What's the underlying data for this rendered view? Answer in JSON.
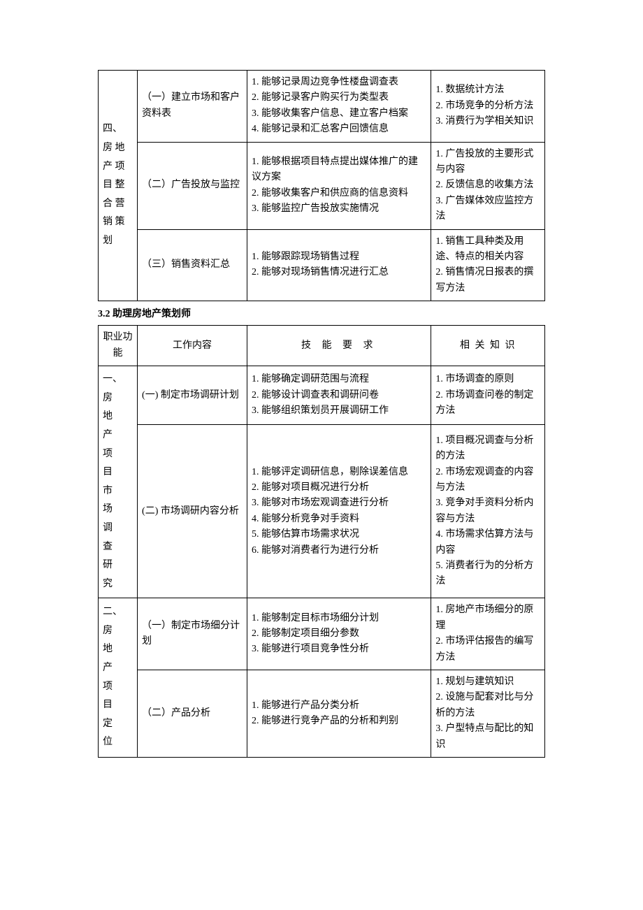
{
  "table1": {
    "colgroup": [
      "col-func",
      "col-work",
      "col-skill",
      "col-know"
    ],
    "rows": [
      {
        "func": "四、房 地产 项目 整合 营销 策划",
        "func_rowspan": 3,
        "work": "（一）建立市场和客户资料表",
        "skill": "1. 能够记录周边竞争性楼盘调查表\n2. 能够记录客户购买行为类型表\n3. 能够收集客户信息、建立客户档案\n4. 能够记录和汇总客户回馈信息",
        "know": "1. 数据统计方法\n2. 市场竞争的分析方法\n3. 消费行为学相关知识"
      },
      {
        "work": "（二）广告投放与监控",
        "skill": "1. 能够根据项目特点提出媒体推广的建议方案\n2. 能够收集客户和供应商的信息资料\n3. 能够监控广告投放实施情况",
        "know": "1. 广告投放的主要形式与内容\n2. 反馈信息的收集方法\n3. 广告媒体效应监控方法"
      },
      {
        "work": "（三）销售资料汇总",
        "skill": "1. 能够跟踪现场销售过程\n2. 能够对现场销售情况进行汇总",
        "know": "1.  销售工具种类及用途、特点的相关内容\n2. 销售情况日报表的撰写方法"
      }
    ]
  },
  "section_title": "3.2 助理房地产策划师",
  "table2": {
    "colgroup": [
      "col-func",
      "col-work",
      "col-skill",
      "col-know"
    ],
    "header": {
      "func": "职业功能",
      "work": "工作内容",
      "skill": "技 能 要 求",
      "know": "相 关 知 识"
    },
    "rows": [
      {
        "func": "一、房地产项目市场调查研究",
        "func_rowspan": 2,
        "work": "(一) 制定市场调研计划",
        "skill": "1. 能够确定调研范围与流程\n2. 能够设计调查表和调研问卷\n3. 能够组织策划员开展调研工作",
        "know": "1. 市场调查的原则\n2. 市场调查问卷的制定方法"
      },
      {
        "work": "(二) 市场调研内容分析",
        "skill": "1. 能够评定调研信息，剔除误差信息\n2. 能够对项目概况进行分析\n3. 能够对市场宏观调查进行分析\n4. 能够分析竞争对手资料\n5. 能够估算市场需求状况\n6. 能够对消费者行为进行分析",
        "know": "1. 项目概况调查与分析的方法\n2. 市场宏观调查的内容与方法\n3. 竞争对手资料分析内容与方法\n4. 市场需求估算方法与内容\n5. 消费者行为的分析方法"
      },
      {
        "func": "二、房地产项目定位",
        "func_rowspan": 2,
        "work": "（一）制定市场细分计划",
        "skill": "1. 能够制定目标市场细分计划\n2. 能够制定项目细分参数\n3. 能够进行项目竞争性分析",
        "know": "1. 房地产市场细分的原理\n2. 市场评估报告的编写方法"
      },
      {
        "work": "（二）产品分析",
        "skill": "1. 能够进行产品分类分析\n2. 能够进行竞争产品的分析和判别",
        "know": "1. 规划与建筑知识\n2. 设施与配套对比与分析的方法\n3. 户型特点与配比的知识"
      }
    ]
  },
  "colors": {
    "text": "#000000",
    "border": "#000000",
    "background": "#ffffff"
  }
}
